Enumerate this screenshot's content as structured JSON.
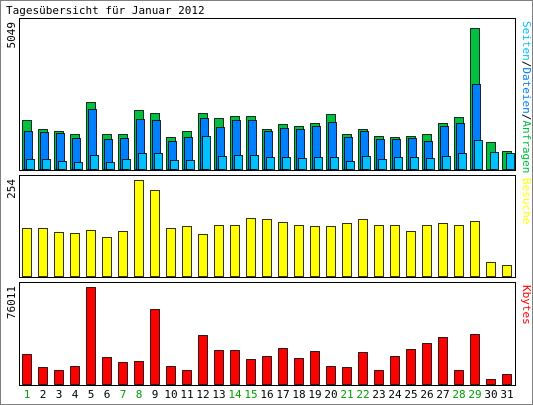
{
  "chart_data": {
    "type": "bar",
    "title": "Tagesübersicht für Januar 2012",
    "categories": [
      "1",
      "2",
      "3",
      "4",
      "5",
      "6",
      "7",
      "8",
      "9",
      "10",
      "11",
      "12",
      "13",
      "14",
      "15",
      "16",
      "17",
      "18",
      "19",
      "20",
      "21",
      "22",
      "23",
      "24",
      "25",
      "26",
      "27",
      "28",
      "29",
      "30",
      "31"
    ],
    "weekend_days": [
      "1",
      "7",
      "8",
      "14",
      "15",
      "21",
      "22",
      "28",
      "29"
    ],
    "colors": {
      "weekday_label": "#000000",
      "weekend_label": "#00a000",
      "seiten": "#00c0ff",
      "dateien": "#0080ff",
      "anfragen": "#00c040",
      "besuche": "#ffff00",
      "kbytes": "#ff0000"
    },
    "panels": [
      {
        "id": "requests",
        "ylabel": "",
        "max_label": "5049",
        "ymax": 5049,
        "legend": {
          "parts": [
            {
              "text": "Seiten",
              "color": "#00c0ff"
            },
            {
              "text": "/",
              "color": "#000000"
            },
            {
              "text": "Dateien",
              "color": "#0080ff"
            },
            {
              "text": "/",
              "color": "#000000"
            },
            {
              "text": "Anfragen",
              "color": "#00c040"
            }
          ]
        },
        "series": [
          {
            "name": "Anfragen",
            "color": "#00c040",
            "values": [
              1700,
              1400,
              1300,
              1200,
              2300,
              1200,
              1200,
              2050,
              1950,
              1120,
              1300,
              1950,
              1750,
              1850,
              1850,
              1400,
              1550,
              1500,
              1600,
              1900,
              1200,
              1400,
              1130,
              1120,
              1130,
              1200,
              1600,
              1800,
              4870,
              920,
              610
            ]
          },
          {
            "name": "Dateien",
            "color": "#0080ff",
            "values": [
              1330,
              1280,
              1230,
              1060,
              2090,
              1050,
              1060,
              1720,
              1710,
              980,
              1120,
              1750,
              1460,
              1700,
              1700,
              1330,
              1420,
              1370,
              1500,
              1640,
              1110,
              1320,
              1030,
              1040,
              1060,
              980,
              1500,
              1600,
              2950,
              0,
              0
            ]
          },
          {
            "name": "Seiten",
            "color": "#00c0ff",
            "values": [
              350,
              330,
              260,
              250,
              470,
              240,
              330,
              570,
              550,
              300,
              320,
              1150,
              440,
              470,
              490,
              400,
              430,
              380,
              400,
              430,
              280,
              460,
              340,
              400,
              400,
              380,
              450,
              560,
              1000,
              600,
              570
            ]
          }
        ]
      },
      {
        "id": "visits",
        "ylabel": "",
        "max_label": "254",
        "ymax": 254,
        "legend": {
          "parts": [
            {
              "text": "Besuche",
              "color": "#ffff00"
            }
          ]
        },
        "series": [
          {
            "name": "Besuche",
            "color": "#ffff00",
            "values": [
              126,
              128,
              116,
              114,
              122,
              102,
              119,
              254,
              228,
              127,
              132,
              110,
              135,
              136,
              154,
              150,
              142,
              135,
              131,
              131,
              140,
              150,
              134,
              135,
              119,
              134,
              141,
              135,
              146,
              36,
              28
            ]
          }
        ]
      },
      {
        "id": "traffic",
        "ylabel": "",
        "max_label": "76011",
        "ymax": 76011,
        "legend": {
          "parts": [
            {
              "text": "Kbytes",
              "color": "#ff0000"
            }
          ]
        },
        "series": [
          {
            "name": "Kbytes",
            "color": "#ff0000",
            "values": [
              23500,
              13300,
              10900,
              14300,
              76000,
              21400,
              16900,
              18200,
              58600,
              14300,
              10900,
              38700,
              27000,
              27000,
              19300,
              21800,
              28300,
              20100,
              25600,
              14300,
              13300,
              25300,
              10900,
              21800,
              27400,
              32200,
              36500,
              10900,
              39200,
              4200,
              8000
            ]
          }
        ]
      }
    ]
  }
}
